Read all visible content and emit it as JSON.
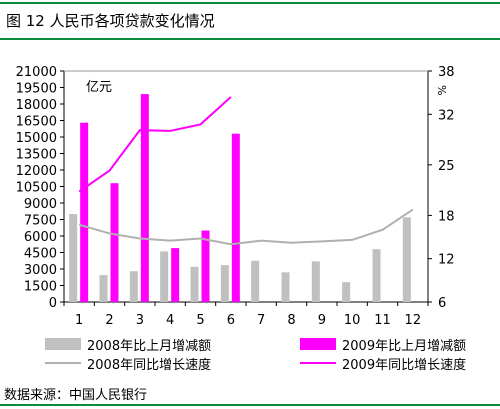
{
  "figure": {
    "title": "图 12 人民币各项贷款变化情况",
    "source": "数据来源：中国人民银行"
  },
  "chart_data": {
    "type": "bar",
    "categories": [
      "1",
      "2",
      "3",
      "4",
      "5",
      "6",
      "7",
      "8",
      "9",
      "10",
      "11",
      "12"
    ],
    "y_left": {
      "unit_label": "亿元",
      "ylim": [
        0,
        21000
      ],
      "ticks": [
        0,
        1500,
        3000,
        4500,
        6000,
        7500,
        9000,
        10500,
        12000,
        13500,
        15000,
        16500,
        18000,
        19500,
        21000
      ]
    },
    "y_right": {
      "unit_label": "%",
      "ylim": [
        6,
        38
      ],
      "ticks": [
        6,
        12,
        18,
        25,
        32,
        38
      ]
    },
    "series": [
      {
        "name": "2008年比上月增减额",
        "kind": "bar",
        "axis": "left",
        "color": "#c0c0c0",
        "values": [
          8000,
          2450,
          2800,
          4600,
          3200,
          3350,
          3750,
          2700,
          3700,
          1800,
          4800,
          7700
        ]
      },
      {
        "name": "2009年比上月增减额",
        "kind": "bar",
        "axis": "left",
        "color": "#ff00ff",
        "values": [
          16300,
          10800,
          18900,
          4900,
          6500,
          15300,
          null,
          null,
          null,
          null,
          null,
          null
        ]
      },
      {
        "name": "2008年同比增长速度",
        "kind": "line",
        "axis": "right",
        "color": "#b0b0b0",
        "values": [
          16.7,
          15.5,
          14.8,
          14.5,
          14.8,
          14.0,
          14.5,
          14.2,
          14.4,
          14.6,
          16.0,
          18.8
        ]
      },
      {
        "name": "2009年同比增长速度",
        "kind": "line",
        "axis": "right",
        "color": "#ff00ff",
        "values": [
          21.3,
          24.2,
          29.8,
          29.7,
          30.6,
          34.4,
          null,
          null,
          null,
          null,
          null,
          null
        ]
      }
    ],
    "grid": false,
    "legend_position": "bottom"
  }
}
